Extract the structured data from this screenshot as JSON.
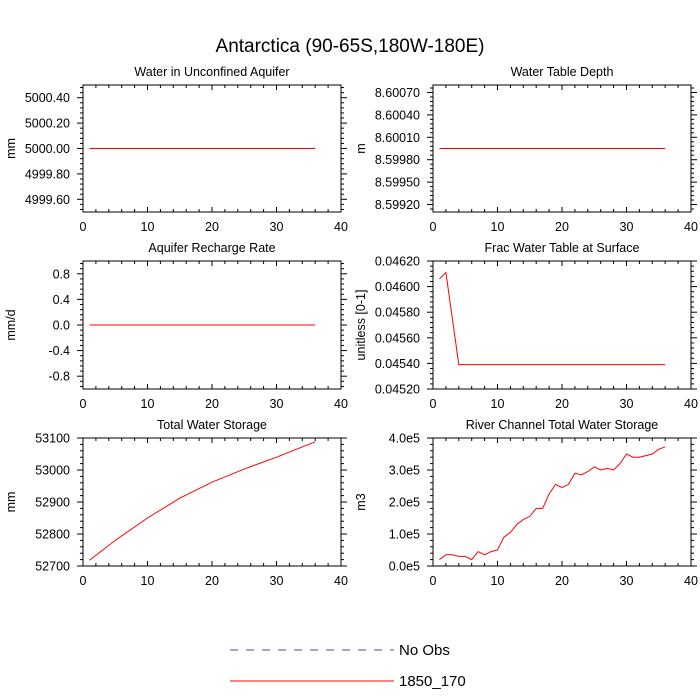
{
  "figure": {
    "title": "Antarctica (90-65S,180W-180E)"
  },
  "colors": {
    "model": "#ff0000",
    "obs": "#4444cc",
    "axis": "#000000"
  },
  "legend": {
    "placement": "bottom-center",
    "entries": [
      {
        "label": "No Obs",
        "style": "dashed",
        "color": "#4444cc"
      },
      {
        "label": "1850_170",
        "style": "solid",
        "color": "#ff0000"
      }
    ]
  },
  "chart_data": [
    {
      "type": "line",
      "title": "Water in Unconfined Aquifer",
      "xlabel": "",
      "ylabel": "mm",
      "xlim": [
        0,
        40
      ],
      "ylim": [
        4999.5,
        5000.5
      ],
      "xticks": [
        0,
        10,
        20,
        30,
        40
      ],
      "xtick_labels": [
        "0",
        "10",
        "20",
        "30",
        "40"
      ],
      "yticks": [
        4999.6,
        4999.8,
        5000.0,
        5000.2,
        5000.4
      ],
      "ytick_labels": [
        "4999.60",
        "4999.80",
        "5000.00",
        "5000.20",
        "5000.40"
      ],
      "series": [
        {
          "name": "1850_170",
          "x": [
            1,
            36
          ],
          "values": [
            5000.0,
            5000.0
          ]
        }
      ]
    },
    {
      "type": "line",
      "title": "Water Table Depth",
      "xlabel": "",
      "ylabel": "m",
      "xlim": [
        0,
        40
      ],
      "ylim": [
        8.5991,
        8.6008
      ],
      "xticks": [
        0,
        10,
        20,
        30,
        40
      ],
      "xtick_labels": [
        "0",
        "10",
        "20",
        "30",
        "40"
      ],
      "yticks": [
        8.5992,
        8.5995,
        8.5998,
        8.6001,
        8.6004,
        8.6007
      ],
      "ytick_labels": [
        "8.59920",
        "8.59950",
        "8.59980",
        "8.60010",
        "8.60040",
        "8.60070"
      ],
      "series": [
        {
          "name": "1850_170",
          "x": [
            1,
            36
          ],
          "values": [
            8.59995,
            8.59995
          ]
        }
      ]
    },
    {
      "type": "line",
      "title": "Aquifer Recharge Rate",
      "xlabel": "",
      "ylabel": "mm/d",
      "xlim": [
        0,
        40
      ],
      "ylim": [
        -1.0,
        1.0
      ],
      "xticks": [
        0,
        10,
        20,
        30,
        40
      ],
      "xtick_labels": [
        "0",
        "10",
        "20",
        "30",
        "40"
      ],
      "yticks": [
        -0.8,
        -0.4,
        0.0,
        0.4,
        0.8
      ],
      "ytick_labels": [
        "-0.8",
        "-0.4",
        "0.0",
        "0.4",
        "0.8"
      ],
      "series": [
        {
          "name": "1850_170",
          "x": [
            1,
            36
          ],
          "values": [
            0.0,
            0.0
          ]
        }
      ]
    },
    {
      "type": "line",
      "title": "Frac Water Table at Surface",
      "xlabel": "",
      "ylabel": "unitless [0-1]",
      "xlim": [
        0,
        40
      ],
      "ylim": [
        0.0452,
        0.0462
      ],
      "xticks": [
        0,
        10,
        20,
        30,
        40
      ],
      "xtick_labels": [
        "0",
        "10",
        "20",
        "30",
        "40"
      ],
      "yticks": [
        0.0452,
        0.0454,
        0.0456,
        0.0458,
        0.046,
        0.0462
      ],
      "ytick_labels": [
        "0.04520",
        "0.04540",
        "0.04560",
        "0.04580",
        "0.04600",
        "0.04620"
      ],
      "series": [
        {
          "name": "1850_170",
          "x": [
            1,
            2,
            4,
            13,
            36
          ],
          "values": [
            0.04606,
            0.04611,
            0.04539,
            0.04539,
            0.04539
          ]
        }
      ]
    },
    {
      "type": "line",
      "title": "Total Water Storage",
      "xlabel": "",
      "ylabel": "mm",
      "xlim": [
        0,
        40
      ],
      "ylim": [
        52700,
        53100
      ],
      "xticks": [
        0,
        10,
        20,
        30,
        40
      ],
      "xtick_labels": [
        "0",
        "10",
        "20",
        "30",
        "40"
      ],
      "yticks": [
        52700,
        52800,
        52900,
        53000,
        53100
      ],
      "ytick_labels": [
        "52700",
        "52800",
        "52900",
        "53000",
        "53100"
      ],
      "series": [
        {
          "name": "1850_170",
          "x": [
            1,
            5,
            10,
            15,
            20,
            25,
            30,
            36
          ],
          "values": [
            52718,
            52780,
            52850,
            52912,
            52962,
            53003,
            53040,
            53088
          ]
        }
      ]
    },
    {
      "type": "line",
      "title": "River Channel Total Water Storage",
      "xlabel": "",
      "ylabel": "m3",
      "xlim": [
        0,
        40
      ],
      "ylim": [
        0,
        400000
      ],
      "xticks": [
        0,
        10,
        20,
        30,
        40
      ],
      "xtick_labels": [
        "0",
        "10",
        "20",
        "30",
        "40"
      ],
      "yticks": [
        0,
        100000,
        200000,
        300000,
        400000
      ],
      "ytick_labels": [
        "0.0e5",
        "1.0e5",
        "2.0e5",
        "3.0e5",
        "4.0e5"
      ],
      "series": [
        {
          "name": "1850_170",
          "x": [
            1,
            2,
            3,
            4,
            5,
            6,
            7,
            8,
            9,
            10,
            11,
            12,
            13,
            14,
            15,
            16,
            17,
            18,
            19,
            20,
            21,
            22,
            23,
            24,
            25,
            26,
            27,
            28,
            29,
            30,
            31,
            32,
            33,
            34,
            35,
            36
          ],
          "values": [
            20000,
            35000,
            35000,
            30000,
            30000,
            20000,
            45000,
            35000,
            45000,
            50000,
            90000,
            105000,
            130000,
            145000,
            155000,
            180000,
            180000,
            225000,
            255000,
            245000,
            255000,
            290000,
            285000,
            295000,
            310000,
            300000,
            305000,
            300000,
            320000,
            350000,
            340000,
            340000,
            345000,
            350000,
            365000,
            372000
          ]
        }
      ]
    }
  ]
}
